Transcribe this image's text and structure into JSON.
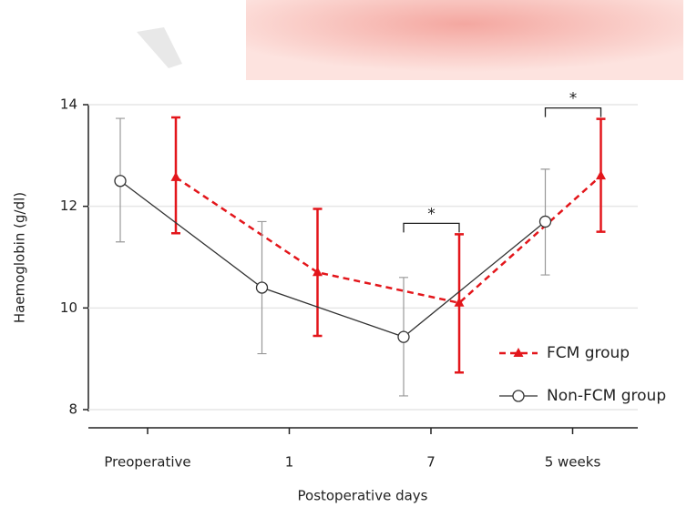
{
  "chart_data": {
    "type": "line",
    "x_label": "Postoperative days",
    "y_label": "Haemoglobin (g/dl)",
    "categories": [
      "Preoperative",
      "1",
      "7",
      "5 weeks"
    ],
    "series": [
      {
        "name": "FCM group",
        "color": "#e3161b",
        "marker": "triangle",
        "dashed": true,
        "values": [
          12.57,
          10.7,
          10.1,
          12.6
        ],
        "upper": [
          13.75,
          11.95,
          11.45,
          13.72
        ],
        "lower": [
          11.47,
          9.45,
          8.73,
          11.5
        ]
      },
      {
        "name": "Non-FCM group",
        "color": "#333333",
        "marker": "circle",
        "dashed": false,
        "values": [
          12.5,
          10.4,
          9.43,
          11.7
        ],
        "upper": [
          13.73,
          11.7,
          10.6,
          12.73
        ],
        "lower": [
          11.3,
          9.1,
          8.27,
          10.65
        ]
      }
    ],
    "ylim": [
      8,
      14
    ],
    "yticks": [
      8,
      10,
      12,
      14
    ],
    "grid": true,
    "annotations": [
      {
        "category": "7",
        "text": "*"
      },
      {
        "category": "5 weeks",
        "text": "*"
      }
    ]
  }
}
